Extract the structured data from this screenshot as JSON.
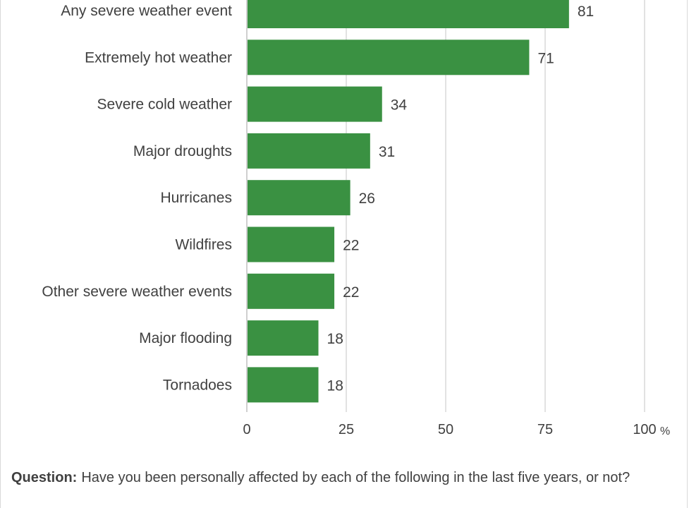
{
  "chart_data": {
    "type": "bar",
    "orientation": "horizontal",
    "categories": [
      "Any severe weather event",
      "Extremely hot weather",
      "Severe cold weather",
      "Major droughts",
      "Hurricanes",
      "Wildfires",
      "Other severe weather events",
      "Major flooding",
      "Tornadoes"
    ],
    "values": [
      81,
      71,
      34,
      31,
      26,
      22,
      22,
      18,
      18
    ],
    "xlim": [
      0,
      100
    ],
    "xticks": [
      "0",
      "25",
      "50",
      "75",
      "100"
    ],
    "x_unit": "%",
    "grid": "vertical",
    "bar_color": "#3a9142"
  },
  "footnote": {
    "prefix": "Question:",
    "text": "Have you been personally affected by each of the following in the last five years, or not?"
  }
}
